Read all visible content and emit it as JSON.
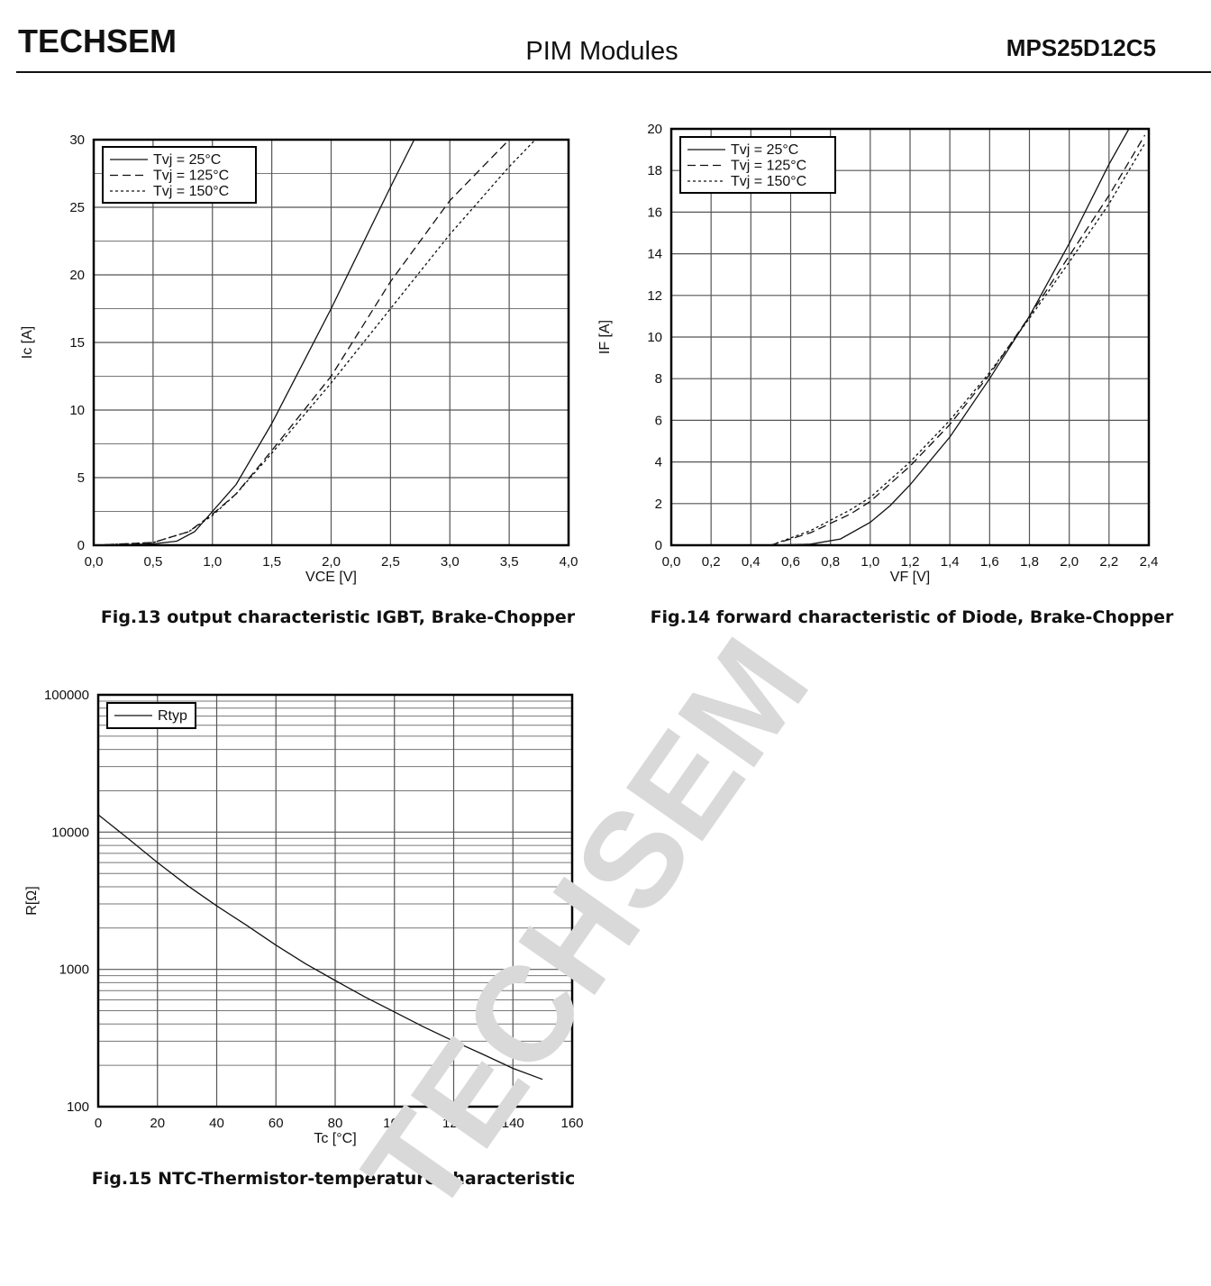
{
  "header": {
    "left": "TECHSEM",
    "center": "PIM  Modules",
    "right": "MPS25D12C5"
  },
  "watermark": "TECHSEM",
  "chart_data": [
    {
      "type": "line",
      "caption": "Fig.13 output characteristic IGBT, Brake-Chopper",
      "xlabel": "VCE  [V]",
      "ylabel": "Ic [A]",
      "xlim": [
        0,
        4
      ],
      "ylim": [
        0,
        30
      ],
      "xticks": [
        {
          "value": 0,
          "label": "0,0"
        },
        {
          "value": 0.5,
          "label": "0,5"
        },
        {
          "value": 1,
          "label": "1,0"
        },
        {
          "value": 1.5,
          "label": "1,5"
        },
        {
          "value": 2,
          "label": "2,0"
        },
        {
          "value": 2.5,
          "label": "2,5"
        },
        {
          "value": 3,
          "label": "3,0"
        },
        {
          "value": 3.5,
          "label": "3,5"
        },
        {
          "value": 4,
          "label": "4,0"
        }
      ],
      "yticks": [
        0,
        5,
        10,
        15,
        20,
        25,
        30
      ],
      "grid": true,
      "minor_grid": true,
      "legend": "upper left",
      "series": [
        {
          "name": "Tvj = 25°C",
          "color": "#111111",
          "dash": "solid",
          "x": [
            0,
            0.5,
            0.7,
            0.85,
            1.0,
            1.2,
            1.5,
            2.0,
            2.5,
            2.7
          ],
          "values": [
            0,
            0.1,
            0.3,
            1,
            2.5,
            4.5,
            9,
            17.5,
            26.5,
            30
          ]
        },
        {
          "name": "Tvj = 125°C",
          "color": "#111111",
          "dash": "dashed",
          "x": [
            0,
            0.5,
            0.8,
            1.0,
            1.2,
            1.5,
            2.0,
            2.5,
            3.0,
            3.5
          ],
          "values": [
            0,
            0.2,
            1,
            2.3,
            3.8,
            7,
            12.5,
            19.5,
            25.5,
            30
          ]
        },
        {
          "name": "Tvj = 150°C",
          "color": "#111111",
          "dash": "dotted",
          "x": [
            0,
            0.5,
            0.8,
            1.0,
            1.2,
            1.5,
            2.0,
            2.5,
            3.0,
            3.5,
            3.72
          ],
          "values": [
            0,
            0.2,
            1,
            2.2,
            3.8,
            6.8,
            12,
            17.5,
            23,
            28,
            30
          ]
        }
      ]
    },
    {
      "type": "line",
      "caption": "Fig.14 forward characteristic of Diode, Brake-Chopper",
      "xlabel": "VF [V]",
      "ylabel": "IF [A]",
      "xlim": [
        0,
        2.4
      ],
      "ylim": [
        0,
        20
      ],
      "xticks": [
        {
          "value": 0,
          "label": "0,0"
        },
        {
          "value": 0.2,
          "label": "0,2"
        },
        {
          "value": 0.4,
          "label": "0,4"
        },
        {
          "value": 0.6,
          "label": "0,6"
        },
        {
          "value": 0.8,
          "label": "0,8"
        },
        {
          "value": 1,
          "label": "1,0"
        },
        {
          "value": 1.2,
          "label": "1,2"
        },
        {
          "value": 1.4,
          "label": "1,4"
        },
        {
          "value": 1.6,
          "label": "1,6"
        },
        {
          "value": 1.8,
          "label": "1,8"
        },
        {
          "value": 2,
          "label": "2,0"
        },
        {
          "value": 2.2,
          "label": "2,2"
        },
        {
          "value": 2.4,
          "label": "2,4"
        }
      ],
      "yticks": [
        0,
        2,
        4,
        6,
        8,
        10,
        12,
        14,
        16,
        18,
        20
      ],
      "grid": true,
      "minor_grid": false,
      "legend": "upper left",
      "series": [
        {
          "name": "Tvj = 25°C",
          "color": "#111111",
          "dash": "solid",
          "x": [
            0.5,
            0.7,
            0.85,
            1.0,
            1.1,
            1.2,
            1.4,
            1.6,
            1.8,
            2.0,
            2.2,
            2.3
          ],
          "values": [
            0,
            0.05,
            0.3,
            1.1,
            1.9,
            2.9,
            5.2,
            8,
            11,
            14.5,
            18.3,
            20
          ]
        },
        {
          "name": "Tvj = 125°C",
          "color": "#111111",
          "dash": "dashed",
          "x": [
            0.5,
            0.7,
            0.9,
            1.0,
            1.2,
            1.4,
            1.6,
            1.8,
            2.0,
            2.2,
            2.38
          ],
          "values": [
            0,
            0.6,
            1.5,
            2.1,
            3.8,
            5.8,
            8.2,
            11,
            13.9,
            16.8,
            19.7
          ]
        },
        {
          "name": "Tvj = 150°C",
          "color": "#111111",
          "dash": "dotted",
          "x": [
            0.5,
            0.7,
            0.9,
            1.0,
            1.2,
            1.4,
            1.6,
            1.8,
            2.0,
            2.2,
            2.38
          ],
          "values": [
            0,
            0.7,
            1.7,
            2.3,
            4.0,
            6.0,
            8.3,
            10.9,
            13.6,
            16.4,
            19.3
          ]
        }
      ]
    },
    {
      "type": "line",
      "caption": "Fig.15 NTC-Thermistor-temperature characteristic",
      "xlabel": "Tc [°C]",
      "ylabel": "R[Ω]",
      "xlim": [
        0,
        160
      ],
      "ylim": [
        100,
        100000
      ],
      "ylog": true,
      "xticks": [
        0,
        20,
        40,
        60,
        80,
        100,
        120,
        140,
        160
      ],
      "yticks": [
        100,
        1000,
        10000,
        100000
      ],
      "grid": true,
      "minor_grid": true,
      "legend": "upper left",
      "series": [
        {
          "name": "Rtyp",
          "color": "#111111",
          "dash": "solid",
          "x": [
            0,
            10,
            20,
            30,
            40,
            50,
            60,
            70,
            80,
            90,
            100,
            110,
            120,
            130,
            140,
            150
          ],
          "values": [
            13400,
            9000,
            6000,
            4100,
            2900,
            2100,
            1500,
            1100,
            830,
            630,
            490,
            380,
            300,
            240,
            190,
            158
          ]
        }
      ]
    }
  ]
}
